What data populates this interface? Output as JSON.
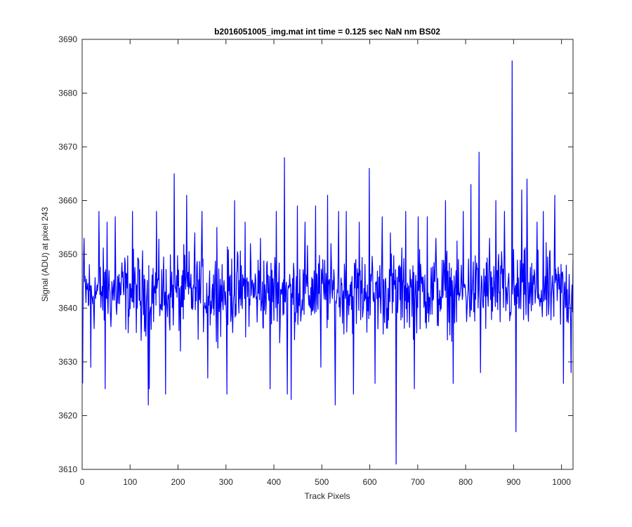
{
  "chart_data": {
    "type": "line",
    "title": "b2016051005_img.mat int time = 0.125 sec  NaN nm BS02",
    "xlabel": "Track Pixels",
    "ylabel": "Signal (ADU) at pixel 243",
    "xlim": [
      0,
      1024
    ],
    "ylim": [
      3610,
      3690
    ],
    "xticks": [
      0,
      100,
      200,
      300,
      400,
      500,
      600,
      700,
      800,
      900,
      1000
    ],
    "yticks": [
      3610,
      3620,
      3630,
      3640,
      3650,
      3660,
      3670,
      3680,
      3690
    ],
    "grid": false,
    "series": [
      {
        "color": "#0000ff",
        "baseline": 3643,
        "x": [
          1,
          4,
          18,
          35,
          48,
          52,
          69,
          90,
          105,
          123,
          138,
          140,
          155,
          174,
          192,
          205,
          218,
          235,
          250,
          262,
          281,
          302,
          318,
          340,
          351,
          372,
          392,
          405,
          422,
          428,
          436,
          449,
          465,
          487,
          498,
          512,
          528,
          535,
          551,
          566,
          578,
          599,
          611,
          626,
          643,
          655,
          662,
          675,
          693,
          701,
          720,
          738,
          758,
          774,
          795,
          811,
          828,
          831,
          850,
          863,
          881,
          897,
          905,
          917,
          928,
          949,
          962,
          986,
          1004,
          1020,
          1024
        ],
        "y": [
          3626,
          3653,
          3629,
          3658,
          3625,
          3656,
          3657,
          3648,
          3658,
          3634,
          3622,
          3625,
          3658,
          3624,
          3665,
          3632,
          3661,
          3654,
          3658,
          3627,
          3655,
          3624,
          3660,
          3656,
          3652,
          3653,
          3625,
          3658,
          3668,
          3624,
          3623,
          3659,
          3656,
          3659,
          3629,
          3661,
          3622,
          3658,
          3658,
          3624,
          3656,
          3666,
          3626,
          3657,
          3654,
          3611,
          3648,
          3658,
          3625,
          3657,
          3657,
          3653,
          3660,
          3626,
          3658,
          3663,
          3669,
          3628,
          3653,
          3660,
          3658,
          3686,
          3617,
          3662,
          3664,
          3656,
          3658,
          3661,
          3626,
          3628,
          3649
        ]
      }
    ]
  }
}
